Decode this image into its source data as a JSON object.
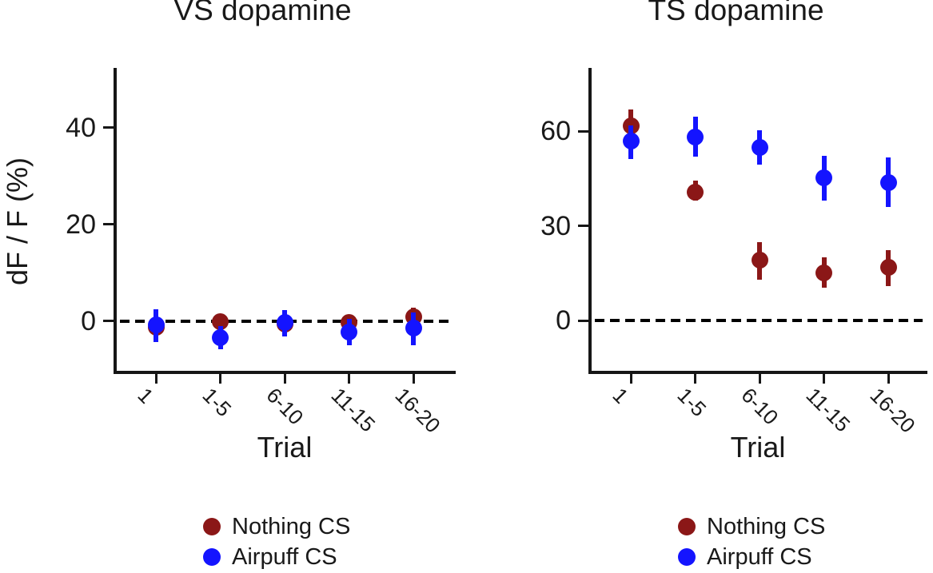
{
  "figure": {
    "background": "#ffffff",
    "axis_color": "#161616",
    "text_color": "#191919"
  },
  "legend": {
    "items": [
      {
        "label": "Nothing CS",
        "color": "#8B1717"
      },
      {
        "label": "Airpuff CS",
        "color": "#1414FF"
      }
    ]
  },
  "chart_data": [
    {
      "type": "scatter",
      "title": "VS dopamine",
      "xlabel": "Trial",
      "ylabel": "dF / F (%)",
      "x_tick_labels": [
        "1",
        "1-5",
        "6-10",
        "11-15",
        "16-20"
      ],
      "y_ticks": [
        0,
        20,
        40
      ],
      "ylim": [
        -10.8,
        52.4
      ],
      "zero_dashed_line": true,
      "grid": false,
      "legend_position": "bottom",
      "series": [
        {
          "name": "Nothing CS",
          "color": "#8B1717",
          "values": [
            -1.3,
            -0.2,
            -0.7,
            -0.3,
            0.8
          ],
          "err_lo": [
            -3.2,
            -1.7,
            -3.2,
            -1.9,
            -0.9
          ],
          "err_hi": [
            0.6,
            1.3,
            1.0,
            1.2,
            2.7
          ]
        },
        {
          "name": "Airpuff CS",
          "color": "#1414FF",
          "values": [
            -0.8,
            -3.4,
            -0.3,
            -2.3,
            -1.4
          ],
          "err_lo": [
            -4.3,
            -5.8,
            -3.2,
            -5.0,
            -5.0
          ],
          "err_hi": [
            2.5,
            -1.0,
            2.3,
            0.4,
            1.7
          ]
        }
      ]
    },
    {
      "type": "scatter",
      "title": "TS dopamine",
      "xlabel": "Trial",
      "ylabel": "",
      "x_tick_labels": [
        "1",
        "1-5",
        "6-10",
        "11-15",
        "16-20"
      ],
      "y_ticks": [
        0,
        30,
        60
      ],
      "ylim": [
        -16.6,
        80.1
      ],
      "zero_dashed_line": true,
      "grid": false,
      "legend_position": "bottom",
      "series": [
        {
          "name": "Nothing CS",
          "color": "#8B1717",
          "values": [
            61.8,
            40.7,
            19.2,
            15.2,
            17.0
          ],
          "err_lo": [
            56.4,
            38.0,
            12.9,
            10.6,
            10.9
          ],
          "err_hi": [
            67.0,
            44.3,
            25.0,
            20.0,
            22.5
          ]
        },
        {
          "name": "Airpuff CS",
          "color": "#1414FF",
          "values": [
            56.9,
            58.3,
            54.8,
            45.2,
            43.9
          ],
          "err_lo": [
            51.3,
            51.9,
            49.4,
            38.2,
            36.1
          ],
          "err_hi": [
            62.0,
            64.6,
            60.3,
            52.2,
            51.7
          ]
        }
      ]
    }
  ]
}
